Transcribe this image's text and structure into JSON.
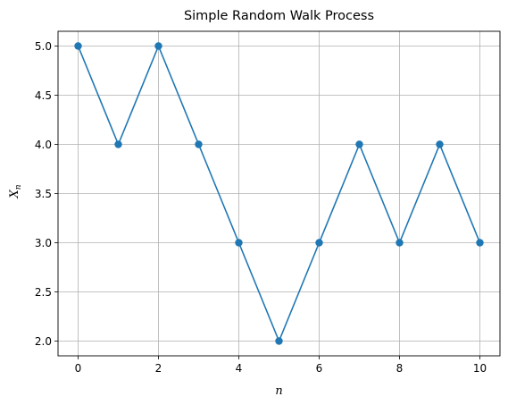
{
  "chart_data": {
    "type": "line",
    "title": "Simple Random Walk Process",
    "xlabel": "n",
    "ylabel_base": "X",
    "ylabel_sub": "n",
    "x": [
      0,
      1,
      2,
      3,
      4,
      5,
      6,
      7,
      8,
      9,
      10
    ],
    "series": [
      {
        "values": [
          5,
          4,
          5,
          4,
          3,
          2,
          3,
          4,
          3,
          4,
          3
        ]
      }
    ],
    "xlim": [
      -0.5,
      10.5
    ],
    "ylim": [
      1.85,
      5.15
    ],
    "xticks": [
      0,
      2,
      4,
      6,
      8,
      10
    ],
    "xtick_labels": [
      "0",
      "2",
      "4",
      "6",
      "8",
      "10"
    ],
    "yticks": [
      2.0,
      2.5,
      3.0,
      3.5,
      4.0,
      4.5,
      5.0
    ],
    "ytick_labels": [
      "2.0",
      "2.5",
      "3.0",
      "3.5",
      "4.0",
      "4.5",
      "5.0"
    ],
    "grid": true,
    "markers": "circle",
    "color": "#1f77b4",
    "grid_color": "#b0b0b0"
  }
}
